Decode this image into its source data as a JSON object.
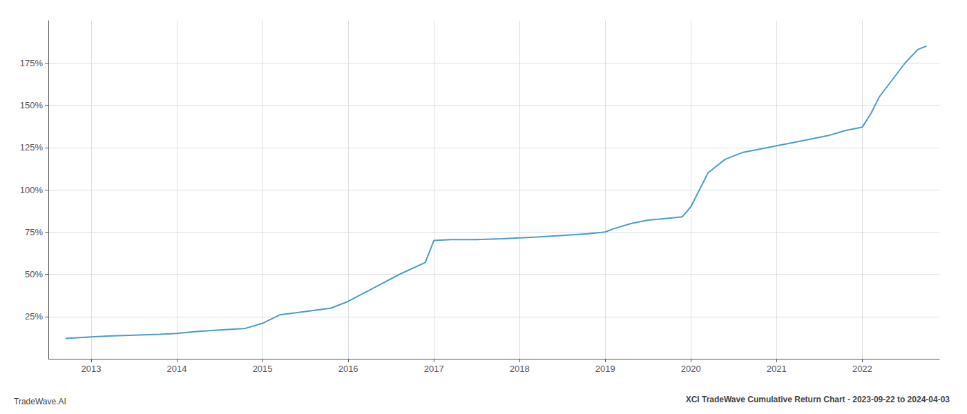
{
  "chart_data": {
    "type": "line",
    "title": "XCI TradeWave Cumulative Return Chart - 2023-09-22 to 2024-04-03",
    "annotations": [
      "TradeWave.AI"
    ],
    "color": "#4a9cc7",
    "x": [
      2012.7,
      2013.0,
      2013.2,
      2013.5,
      2013.8,
      2014.0,
      2014.2,
      2014.5,
      2014.8,
      2015.0,
      2015.2,
      2015.5,
      2015.8,
      2016.0,
      2016.3,
      2016.6,
      2016.9,
      2017.0,
      2017.2,
      2017.5,
      2017.8,
      2018.0,
      2018.2,
      2018.5,
      2018.8,
      2019.0,
      2019.1,
      2019.3,
      2019.5,
      2019.7,
      2019.9,
      2020.0,
      2020.1,
      2020.2,
      2020.4,
      2020.6,
      2020.8,
      2021.0,
      2021.2,
      2021.4,
      2021.6,
      2021.8,
      2022.0,
      2022.1,
      2022.2,
      2022.35,
      2022.5,
      2022.65,
      2022.75
    ],
    "values": [
      12,
      13,
      13.5,
      14,
      14.5,
      15,
      16,
      17,
      18,
      21,
      26,
      28,
      30,
      34,
      42,
      50,
      57,
      70,
      70.5,
      70.5,
      71,
      71.5,
      72,
      73,
      74,
      75,
      77,
      80,
      82,
      83,
      84,
      90,
      100,
      110,
      118,
      122,
      124,
      126,
      128,
      130,
      132,
      135,
      137,
      145,
      155,
      165,
      175,
      183,
      185
    ],
    "xlim": [
      2012.5,
      2022.9
    ],
    "xticks": [
      2013,
      2014,
      2015,
      2016,
      2017,
      2018,
      2019,
      2020,
      2021,
      2022
    ],
    "ylim": [
      0,
      200
    ],
    "yticks": [
      {
        "value": 25,
        "label": "25%"
      },
      {
        "value": 50,
        "label": "50%"
      },
      {
        "value": 75,
        "label": "75%"
      },
      {
        "value": 100,
        "label": "100%"
      },
      {
        "value": 125,
        "label": "125%"
      },
      {
        "value": 150,
        "label": "150%"
      },
      {
        "value": 175,
        "label": "175%"
      }
    ],
    "grid": true
  }
}
